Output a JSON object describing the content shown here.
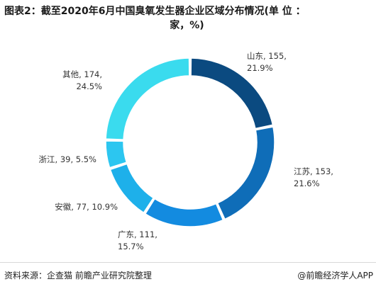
{
  "title": {
    "line1": "图表2：截至2020年6月中国臭氧发生器企业区域分布情况(单 位 ：",
    "line2": "家，%)"
  },
  "chart_data": {
    "type": "pie",
    "donut": true,
    "categories": [
      "山东",
      "江苏",
      "广东",
      "安徽",
      "浙江",
      "其他"
    ],
    "values": [
      155,
      153,
      111,
      77,
      39,
      174
    ],
    "percents": [
      "21.9%",
      "21.6%",
      "15.7%",
      "10.9%",
      "5.5%",
      "24.5%"
    ],
    "labels": [
      [
        "山东, 155,",
        "21.9%"
      ],
      [
        "江苏, 153,",
        "21.6%"
      ],
      [
        "广东, 111,",
        "15.7%"
      ],
      [
        "安徽, 77, 10.9%"
      ],
      [
        "浙江, 39, 5.5%"
      ],
      [
        "其他, 174,",
        "24.5%"
      ]
    ],
    "colors": [
      "#0b4a80",
      "#0f6db8",
      "#138be0",
      "#1eb0ea",
      "#2cc6f0",
      "#3adbee"
    ]
  },
  "footer": {
    "source": "资料来源：企查猫 前瞻产业研究院整理",
    "brand": "@前瞻经济学人APP"
  }
}
